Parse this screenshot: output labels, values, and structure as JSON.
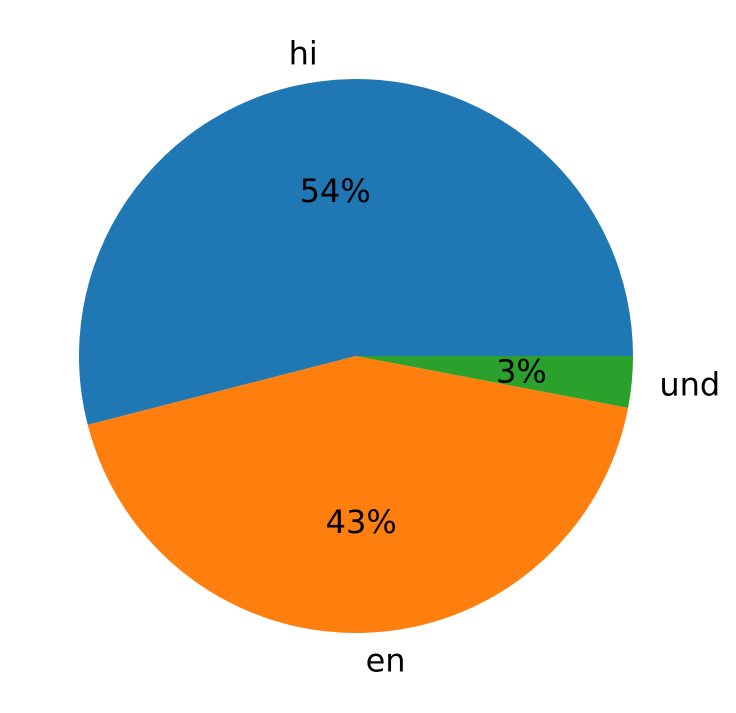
{
  "chart_data": {
    "type": "pie",
    "title": "",
    "slices": [
      {
        "label": "hi",
        "value": 54,
        "pct_label": "54%",
        "color": "#1f77b4"
      },
      {
        "label": "en",
        "value": 43,
        "pct_label": "43%",
        "color": "#ff7f0e"
      },
      {
        "label": "und",
        "value": 3,
        "pct_label": "3%",
        "color": "#2ca02c"
      }
    ]
  }
}
